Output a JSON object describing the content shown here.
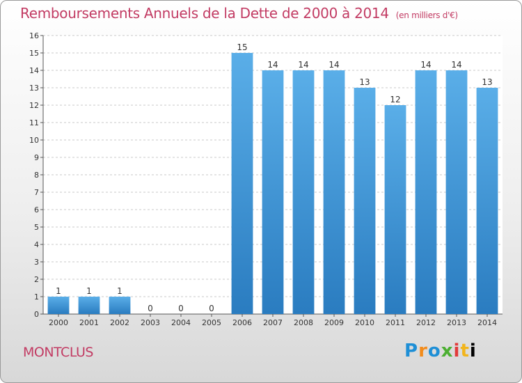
{
  "title": "Remboursements Annuels de la Dette de 2000 à 2014",
  "unit": "(en milliers d'€)",
  "commune": "MONTCLUS",
  "logo_letters": [
    "P",
    "r",
    "o",
    "x",
    "i",
    "t",
    "i"
  ],
  "colors": {
    "accent": "#c23b63",
    "bar_light": "#5aaee8",
    "bar_dark": "#2a7cc0"
  },
  "chart_data": {
    "type": "bar",
    "categories": [
      "2000",
      "2001",
      "2002",
      "2003",
      "2004",
      "2005",
      "2006",
      "2007",
      "2008",
      "2009",
      "2010",
      "2011",
      "2012",
      "2013",
      "2014"
    ],
    "values": [
      1,
      1,
      1,
      0,
      0,
      0,
      15,
      14,
      14,
      14,
      13,
      12,
      14,
      14,
      13
    ],
    "ylim": [
      0,
      16
    ],
    "yticks": [
      0,
      1,
      2,
      3,
      4,
      5,
      6,
      7,
      8,
      9,
      10,
      11,
      12,
      13,
      14,
      15,
      16
    ],
    "grid": true,
    "data_labels": true
  }
}
